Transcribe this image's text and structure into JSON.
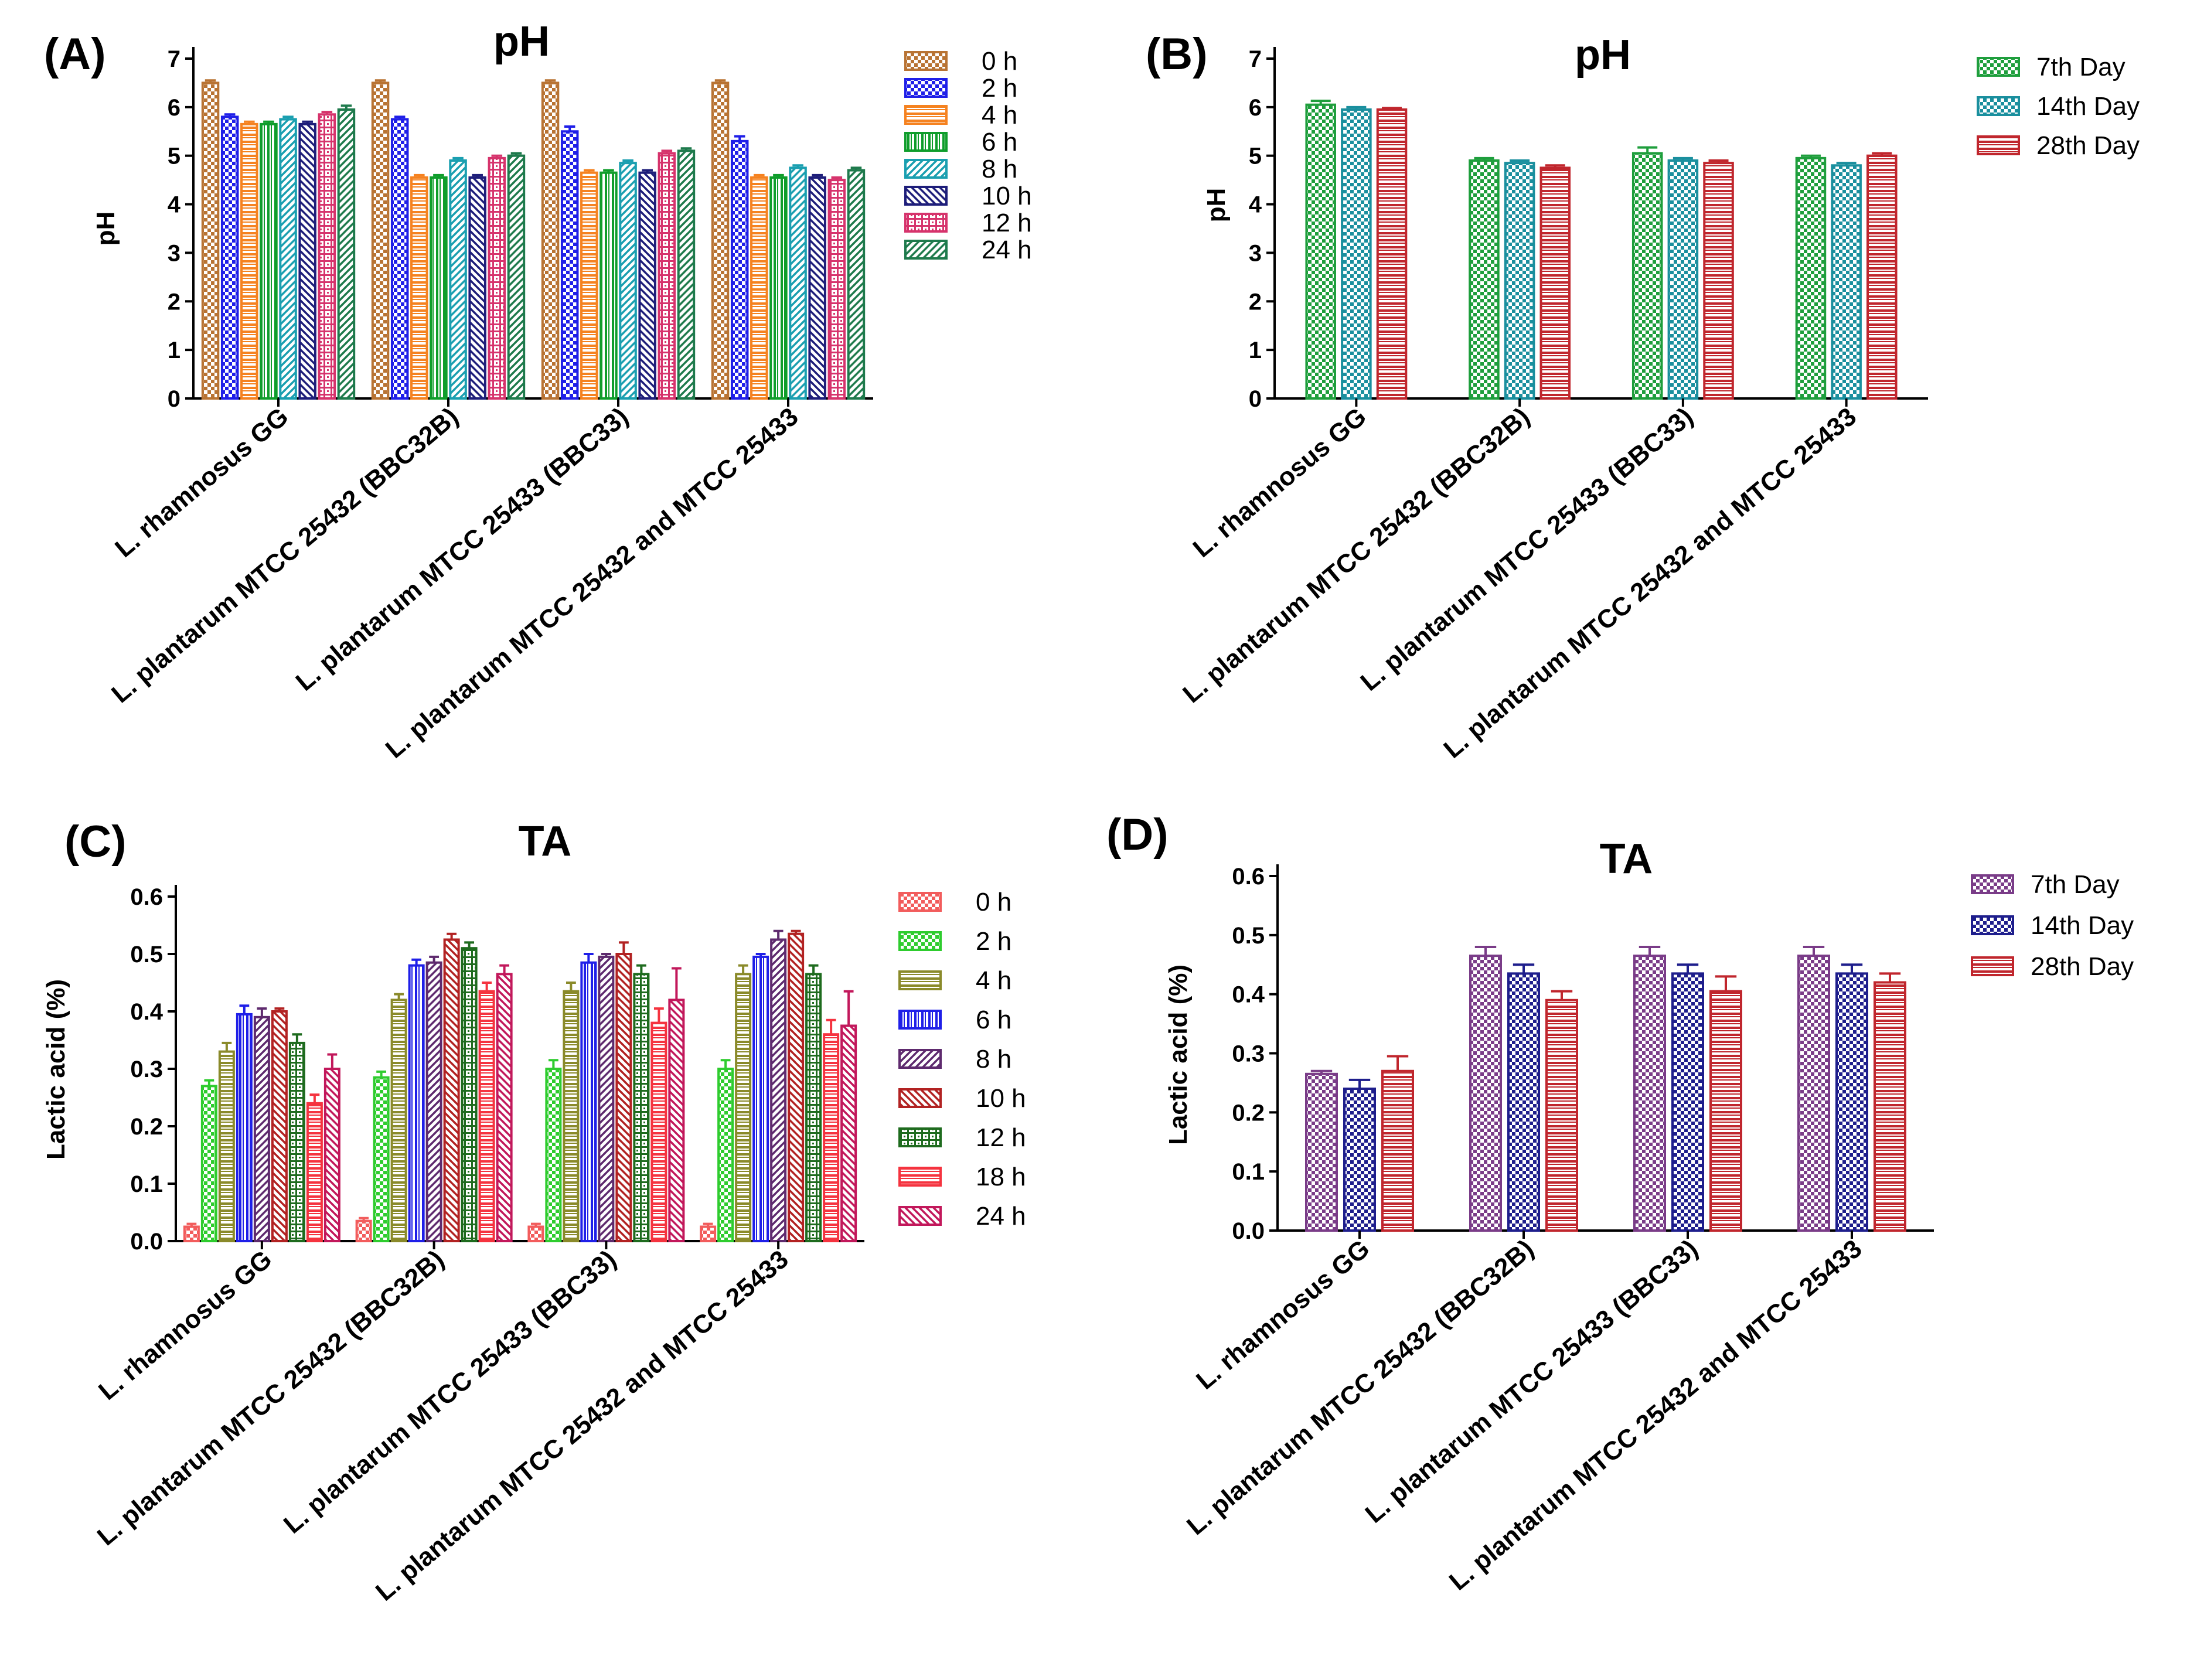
{
  "chart_data": [
    {
      "panel": "(A)",
      "type": "bar",
      "title": "pH",
      "ylabel": "pH",
      "xlabel": "",
      "ylim": [
        0,
        7
      ],
      "yticks": [
        "0",
        "1",
        "2",
        "3",
        "4",
        "5",
        "6",
        "7"
      ],
      "legend_position": "right",
      "categories": [
        "L. rhamnosus GG",
        "L. plantarum MTCC 25432 (BBC32B)",
        "L. plantarum MTCC 25433 (BBC33)",
        "L. plantarum MTCC 25432 and MTCC 25433"
      ],
      "series": [
        {
          "name": "0 h",
          "color": "#B87333",
          "pattern": "checker",
          "values": [
            6.5,
            6.5,
            6.5,
            6.5
          ],
          "errors": [
            0.05,
            0.05,
            0.05,
            0.05
          ]
        },
        {
          "name": "2 h",
          "color": "#1F1FE8",
          "pattern": "checker",
          "values": [
            5.8,
            5.75,
            5.5,
            5.3
          ],
          "errors": [
            0.05,
            0.05,
            0.1,
            0.1
          ]
        },
        {
          "name": "4 h",
          "color": "#F58220",
          "pattern": "horizontal",
          "values": [
            5.65,
            4.55,
            4.65,
            4.55
          ],
          "errors": [
            0.05,
            0.05,
            0.05,
            0.05
          ]
        },
        {
          "name": "6 h",
          "color": "#0F9D2B",
          "pattern": "vertical",
          "values": [
            5.65,
            4.55,
            4.65,
            4.55
          ],
          "errors": [
            0.05,
            0.05,
            0.05,
            0.05
          ]
        },
        {
          "name": "8 h",
          "color": "#1A9FB0",
          "pattern": "diagonal",
          "values": [
            5.75,
            4.9,
            4.85,
            4.75
          ],
          "errors": [
            0.05,
            0.05,
            0.05,
            0.05
          ]
        },
        {
          "name": "10 h",
          "color": "#1E1E7A",
          "pattern": "diagonal-back",
          "values": [
            5.65,
            4.55,
            4.65,
            4.55
          ],
          "errors": [
            0.05,
            0.05,
            0.05,
            0.05
          ]
        },
        {
          "name": "12 h",
          "color": "#D6336C",
          "pattern": "grid",
          "values": [
            5.85,
            4.95,
            5.05,
            4.5
          ],
          "errors": [
            0.05,
            0.05,
            0.05,
            0.05
          ]
        },
        {
          "name": "24 h",
          "color": "#1E7A4C",
          "pattern": "diagonal",
          "values": [
            5.95,
            5.0,
            5.1,
            4.7
          ],
          "errors": [
            0.08,
            0.05,
            0.05,
            0.05
          ]
        }
      ]
    },
    {
      "panel": "(B)",
      "type": "bar",
      "title": "pH",
      "ylabel": "pH",
      "xlabel": "",
      "ylim": [
        0,
        7
      ],
      "yticks": [
        "0",
        "1",
        "2",
        "3",
        "4",
        "5",
        "6",
        "7"
      ],
      "legend_position": "right",
      "categories": [
        "L. rhamnosus GG",
        "L. plantarum MTCC 25432 (BBC32B)",
        "L. plantarum MTCC 25433 (BBC33)",
        "L. plantarum MTCC 25432 and MTCC 25433"
      ],
      "series": [
        {
          "name": "7th Day",
          "color": "#1E9E3C",
          "pattern": "checker",
          "values": [
            6.05,
            4.9,
            5.05,
            4.95
          ],
          "errors": [
            0.08,
            0.05,
            0.12,
            0.05
          ]
        },
        {
          "name": "14th Day",
          "color": "#1A8F9E",
          "pattern": "checker",
          "values": [
            5.95,
            4.85,
            4.9,
            4.8
          ],
          "errors": [
            0.05,
            0.05,
            0.05,
            0.05
          ]
        },
        {
          "name": "28th Day",
          "color": "#C0262D",
          "pattern": "horizontal",
          "values": [
            5.95,
            4.75,
            4.85,
            5.0
          ],
          "errors": [
            0.03,
            0.05,
            0.05,
            0.05
          ]
        }
      ]
    },
    {
      "panel": "(C)",
      "type": "bar",
      "title": "TA",
      "ylabel": "Lactic acid (%)",
      "xlabel": "",
      "ylim": [
        0,
        0.6
      ],
      "yticks": [
        "0.0",
        "0.1",
        "0.2",
        "0.3",
        "0.4",
        "0.5",
        "0.6"
      ],
      "legend_position": "right",
      "categories": [
        "L. rhamnosus GG",
        "L. plantarum MTCC 25432 (BBC32B)",
        "L. plantarum MTCC 25433 (BBC33)",
        "L. plantarum MTCC 25432 and MTCC 25433"
      ],
      "series": [
        {
          "name": "0 h",
          "color": "#F25C5C",
          "pattern": "checker",
          "values": [
            0.025,
            0.035,
            0.025,
            0.025
          ],
          "errors": [
            0.005,
            0.005,
            0.005,
            0.005
          ]
        },
        {
          "name": "2 h",
          "color": "#2ECC2E",
          "pattern": "checker",
          "values": [
            0.27,
            0.285,
            0.3,
            0.3
          ],
          "errors": [
            0.01,
            0.01,
            0.015,
            0.015
          ]
        },
        {
          "name": "4 h",
          "color": "#8A8A2A",
          "pattern": "horizontal",
          "values": [
            0.33,
            0.42,
            0.435,
            0.465
          ],
          "errors": [
            0.015,
            0.01,
            0.015,
            0.015
          ]
        },
        {
          "name": "6 h",
          "color": "#1F1FE8",
          "pattern": "vertical",
          "values": [
            0.395,
            0.48,
            0.485,
            0.495
          ],
          "errors": [
            0.015,
            0.01,
            0.015,
            0.005
          ]
        },
        {
          "name": "8 h",
          "color": "#5E2A6E",
          "pattern": "diagonal",
          "values": [
            0.39,
            0.485,
            0.495,
            0.525
          ],
          "errors": [
            0.015,
            0.01,
            0.005,
            0.015
          ]
        },
        {
          "name": "10 h",
          "color": "#B22222",
          "pattern": "diagonal-back",
          "values": [
            0.4,
            0.525,
            0.5,
            0.535
          ],
          "errors": [
            0.005,
            0.01,
            0.02,
            0.005
          ]
        },
        {
          "name": "12 h",
          "color": "#1E6B1E",
          "pattern": "grid",
          "values": [
            0.345,
            0.51,
            0.465,
            0.465
          ],
          "errors": [
            0.015,
            0.01,
            0.015,
            0.015
          ]
        },
        {
          "name": "18 h",
          "color": "#F5333F",
          "pattern": "horizontal",
          "values": [
            0.24,
            0.435,
            0.38,
            0.36
          ],
          "errors": [
            0.015,
            0.015,
            0.025,
            0.025
          ]
        },
        {
          "name": "24 h",
          "color": "#C2185B",
          "pattern": "diagonal-back",
          "values": [
            0.3,
            0.465,
            0.42,
            0.375
          ],
          "errors": [
            0.025,
            0.015,
            0.055,
            0.06
          ]
        }
      ]
    },
    {
      "panel": "(D)",
      "type": "bar",
      "title": "TA",
      "ylabel": "Lactic acid (%)",
      "xlabel": "",
      "ylim": [
        0,
        0.6
      ],
      "yticks": [
        "0.0",
        "0.1",
        "0.2",
        "0.3",
        "0.4",
        "0.5",
        "0.6"
      ],
      "legend_position": "right",
      "categories": [
        "L. rhamnosus GG",
        "L. plantarum MTCC 25432 (BBC32B)",
        "L. plantarum MTCC 25433 (BBC33)",
        "L. plantarum MTCC 25432 and MTCC 25433"
      ],
      "series": [
        {
          "name": "7th Day",
          "color": "#7A3C88",
          "pattern": "checker",
          "values": [
            0.265,
            0.465,
            0.465,
            0.465
          ],
          "errors": [
            0.005,
            0.015,
            0.015,
            0.015
          ]
        },
        {
          "name": "14th Day",
          "color": "#1E1E8C",
          "pattern": "checker",
          "values": [
            0.24,
            0.435,
            0.435,
            0.435
          ],
          "errors": [
            0.015,
            0.015,
            0.015,
            0.015
          ]
        },
        {
          "name": "28th Day",
          "color": "#C0262D",
          "pattern": "horizontal",
          "values": [
            0.27,
            0.39,
            0.405,
            0.42
          ],
          "errors": [
            0.025,
            0.015,
            0.025,
            0.015
          ]
        }
      ]
    }
  ]
}
